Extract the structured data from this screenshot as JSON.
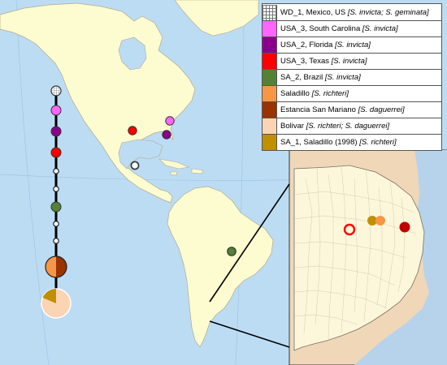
{
  "colors": {
    "ocean": "#bcdcf3",
    "land": "#fdfbd0",
    "inset_land": "#fcf7db",
    "inset_outside": "#efd7b8",
    "inset_water": "#b7d3ec",
    "border": "#b3a98a",
    "haplotype_chain": "#000000"
  },
  "legend": {
    "items": [
      {
        "id": "wd1",
        "label": "WD_1, Mexico, US",
        "species": "[S. invicta; S. geminata]",
        "color": "#ffffff",
        "pattern": "grid"
      },
      {
        "id": "usa3sc",
        "label": "USA_3, South Carolina",
        "species": "[S. invicta]",
        "color": "#ff66ff"
      },
      {
        "id": "usa2",
        "label": "USA_2, Florida",
        "species": "[S. invicta]",
        "color": "#8b008b"
      },
      {
        "id": "usa3tx",
        "label": "USA_3, Texas",
        "species": "[S. invicta]",
        "color": "#ff0000"
      },
      {
        "id": "sa2",
        "label": "SA_2, Brazil",
        "species": "[S. invicta]",
        "color": "#548235"
      },
      {
        "id": "saladillo",
        "label": "Saladillo",
        "species": "[S. richteri]",
        "color": "#f79646"
      },
      {
        "id": "estancia",
        "label": "Estancia San Mariano",
        "species": "[S. daguerrei]",
        "color": "#993300"
      },
      {
        "id": "bolivar",
        "label": "Bolivar",
        "species": "[S. richteri; S. daguerrei]",
        "color": "#fbd4b4"
      },
      {
        "id": "sa1",
        "label": "SA_1, Saladillo (1998)",
        "species": "[S. richteri]",
        "color": "#c09000"
      }
    ]
  }
}
